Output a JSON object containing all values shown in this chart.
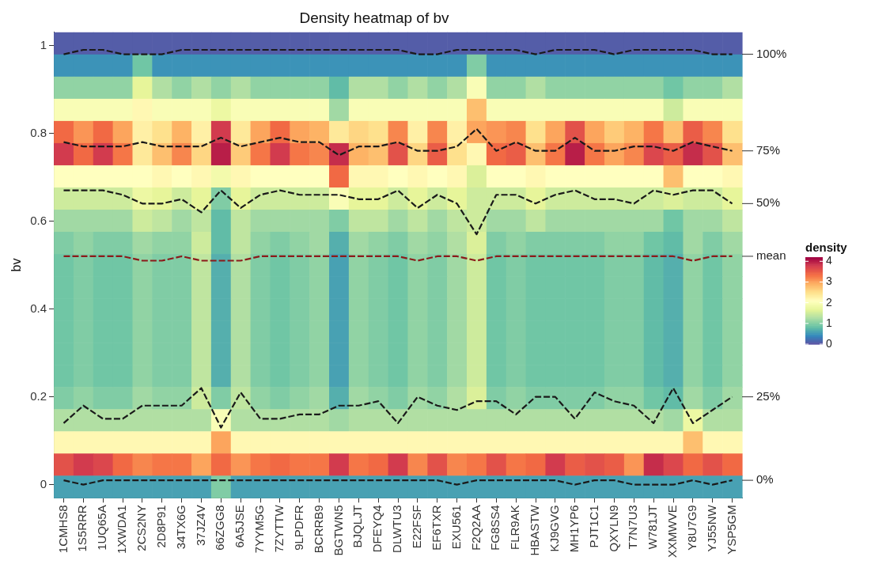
{
  "chart_data": {
    "type": "heatmap",
    "title": "Density heatmap of bv",
    "ylabel": "bv",
    "clabel": "density",
    "categories": [
      "1CMHS8",
      "1S5RRR",
      "1UQ65A",
      "1XWDA1",
      "2CS2NY",
      "2D8P91",
      "34TX6G",
      "37JZ4V",
      "66ZGG8",
      "6A5JSE",
      "7YYM5G",
      "7ZYTTW",
      "9LPDFR",
      "BCRRB9",
      "BGTWN5",
      "BJQLJT",
      "DFEYQ4",
      "DLWTU3",
      "E22FSF",
      "EF6TXR",
      "EXU561",
      "F2Q2AA",
      "FG8SS4",
      "FLR9AK",
      "HBASTW",
      "KJ9GVG",
      "MH1YP6",
      "PJT1C1",
      "QXYLN9",
      "T7N7U3",
      "W781JT",
      "XXMWVE",
      "Y8U7G9",
      "YJ55NW",
      "YSP5GM"
    ],
    "cells": [
      [
        0.1,
        0.1,
        0.1,
        0.1,
        0.1,
        0.1,
        0.1,
        0.1,
        0.1,
        0.1,
        0.1,
        0.1,
        0.1,
        0.1,
        0.1,
        0.1,
        0.1,
        0.1,
        0.1,
        0.1,
        0.1,
        0.1,
        0.1,
        0.1,
        0.1,
        0.1,
        0.1,
        0.1,
        0.1,
        0.1,
        0.1,
        0.1,
        0.1,
        0.1,
        0.1
      ],
      [
        0.5,
        0.5,
        0.5,
        0.5,
        0.9,
        0.5,
        0.5,
        0.5,
        0.5,
        0.5,
        0.5,
        0.5,
        0.5,
        0.5,
        0.5,
        0.5,
        0.5,
        0.5,
        0.5,
        0.5,
        0.5,
        1.0,
        0.5,
        0.5,
        0.5,
        0.5,
        0.5,
        0.5,
        0.5,
        0.5,
        0.5,
        0.5,
        0.5,
        0.5,
        0.5
      ],
      [
        1.1,
        1.1,
        1.1,
        1.1,
        1.7,
        1.3,
        1.1,
        1.3,
        1.1,
        1.3,
        1.1,
        1.1,
        1.1,
        1.1,
        0.8,
        1.3,
        1.3,
        1.1,
        1.3,
        1.1,
        1.3,
        2.0,
        1.1,
        1.1,
        1.3,
        1.1,
        1.1,
        1.1,
        1.1,
        1.1,
        1.1,
        0.9,
        1.1,
        1.1,
        1.3
      ],
      [
        2.0,
        2.0,
        2.0,
        2.0,
        2.2,
        2.0,
        2.0,
        2.0,
        1.8,
        2.0,
        2.0,
        2.0,
        2.0,
        2.0,
        1.2,
        2.0,
        2.0,
        2.0,
        2.0,
        2.0,
        2.0,
        2.8,
        2.0,
        2.0,
        2.0,
        2.0,
        2.0,
        2.0,
        2.0,
        2.0,
        2.0,
        1.5,
        2.0,
        2.0,
        2.0
      ],
      [
        3.4,
        3.1,
        3.4,
        3.0,
        2.3,
        2.5,
        2.9,
        2.3,
        3.8,
        2.4,
        3.0,
        3.4,
        3.0,
        2.9,
        2.4,
        2.6,
        2.5,
        3.2,
        2.3,
        3.2,
        2.3,
        3.0,
        3.1,
        3.2,
        2.5,
        3.0,
        3.6,
        3.0,
        2.7,
        2.9,
        3.3,
        2.8,
        3.5,
        3.2,
        2.5
      ],
      [
        3.8,
        3.4,
        3.8,
        3.3,
        2.4,
        2.8,
        3.2,
        2.6,
        4.0,
        2.7,
        3.3,
        3.8,
        3.3,
        3.2,
        3.9,
        2.9,
        2.8,
        3.6,
        2.6,
        3.5,
        2.5,
        2.2,
        3.4,
        3.5,
        2.8,
        3.3,
        4.0,
        3.3,
        3.0,
        3.2,
        3.7,
        3.5,
        3.9,
        3.6,
        2.8
      ],
      [
        2.1,
        2.1,
        2.1,
        2.1,
        2.1,
        2.2,
        2.1,
        2.2,
        1.9,
        2.2,
        2.1,
        2.1,
        2.1,
        2.1,
        3.4,
        2.2,
        2.2,
        2.1,
        2.2,
        2.1,
        2.2,
        1.6,
        2.1,
        2.1,
        2.2,
        2.1,
        2.1,
        2.1,
        2.1,
        2.1,
        2.1,
        2.8,
        2.1,
        2.1,
        2.2
      ],
      [
        1.5,
        1.5,
        1.5,
        1.5,
        1.8,
        1.7,
        1.5,
        1.7,
        1.0,
        1.7,
        1.5,
        1.5,
        1.5,
        1.5,
        2.0,
        1.7,
        1.7,
        1.5,
        1.7,
        1.5,
        1.7,
        1.5,
        1.5,
        1.5,
        1.7,
        1.5,
        1.5,
        1.5,
        1.5,
        1.5,
        1.5,
        1.6,
        1.5,
        1.5,
        1.7
      ],
      [
        1.2,
        1.2,
        1.2,
        1.2,
        1.5,
        1.4,
        1.2,
        1.4,
        0.8,
        1.4,
        1.2,
        1.2,
        1.2,
        1.2,
        1.0,
        1.4,
        1.4,
        1.2,
        1.4,
        1.2,
        1.4,
        1.5,
        1.2,
        1.2,
        1.4,
        1.2,
        1.2,
        1.2,
        1.2,
        1.2,
        1.2,
        0.9,
        1.2,
        1.2,
        1.4
      ],
      [
        1.0,
        1.1,
        1.0,
        1.0,
        1.2,
        1.1,
        1.1,
        1.5,
        0.8,
        1.4,
        1.1,
        1.0,
        1.1,
        1.2,
        0.7,
        1.2,
        1.1,
        1.0,
        1.2,
        1.1,
        1.3,
        1.6,
        1.0,
        1.1,
        1.0,
        1.0,
        1.0,
        1.0,
        1.1,
        1.1,
        0.9,
        0.8,
        1.2,
        1.0,
        1.2
      ],
      [
        0.9,
        1.0,
        0.9,
        0.9,
        1.1,
        1.0,
        1.0,
        1.4,
        0.7,
        1.3,
        1.0,
        0.9,
        1.0,
        1.1,
        0.6,
        1.1,
        1.0,
        0.9,
        1.1,
        1.0,
        1.2,
        1.5,
        0.9,
        1.0,
        0.9,
        0.9,
        0.9,
        0.9,
        1.0,
        1.0,
        0.8,
        0.7,
        1.1,
        0.9,
        1.1
      ],
      [
        0.9,
        1.0,
        0.9,
        0.9,
        1.1,
        1.0,
        1.0,
        1.4,
        0.7,
        1.3,
        1.0,
        0.9,
        1.0,
        1.1,
        0.6,
        1.1,
        1.0,
        0.9,
        1.1,
        1.0,
        1.2,
        1.5,
        0.9,
        1.0,
        0.9,
        0.9,
        0.9,
        0.9,
        1.0,
        1.0,
        0.8,
        0.7,
        1.1,
        0.9,
        1.1
      ],
      [
        0.9,
        1.0,
        0.9,
        0.9,
        1.1,
        1.0,
        1.0,
        1.4,
        0.7,
        1.3,
        1.0,
        0.9,
        1.0,
        1.1,
        0.6,
        1.1,
        1.0,
        0.9,
        1.1,
        1.0,
        1.2,
        1.5,
        0.9,
        1.0,
        0.9,
        0.9,
        0.9,
        0.9,
        1.0,
        1.0,
        0.8,
        0.7,
        1.1,
        0.9,
        1.1
      ],
      [
        0.9,
        1.0,
        0.9,
        0.9,
        1.1,
        1.0,
        1.0,
        1.4,
        0.7,
        1.3,
        1.0,
        0.9,
        1.0,
        1.1,
        0.6,
        1.1,
        1.0,
        0.9,
        1.1,
        1.0,
        1.2,
        1.5,
        0.9,
        1.0,
        0.9,
        0.9,
        0.9,
        0.9,
        1.0,
        1.0,
        0.8,
        0.7,
        1.1,
        0.9,
        1.1
      ],
      [
        0.9,
        1.0,
        0.9,
        0.9,
        1.1,
        1.0,
        1.0,
        1.4,
        0.7,
        1.3,
        1.0,
        0.9,
        1.0,
        1.1,
        0.6,
        1.1,
        1.0,
        0.9,
        1.1,
        1.0,
        1.2,
        1.5,
        0.9,
        1.0,
        0.9,
        0.9,
        0.9,
        0.9,
        1.0,
        1.0,
        0.8,
        0.7,
        1.1,
        0.9,
        1.1
      ],
      [
        0.9,
        1.0,
        0.9,
        0.9,
        1.1,
        1.0,
        1.0,
        1.4,
        0.7,
        1.3,
        1.0,
        0.9,
        1.0,
        1.1,
        0.6,
        1.1,
        1.0,
        0.9,
        1.1,
        1.0,
        1.2,
        1.5,
        0.9,
        1.0,
        0.9,
        0.9,
        0.9,
        0.9,
        1.0,
        1.0,
        0.8,
        0.7,
        1.1,
        0.9,
        1.1
      ],
      [
        1.0,
        1.1,
        1.0,
        1.0,
        1.2,
        1.1,
        1.1,
        1.5,
        1.0,
        1.4,
        1.1,
        1.0,
        1.1,
        1.2,
        0.7,
        1.2,
        1.1,
        1.0,
        1.2,
        1.1,
        1.3,
        1.6,
        1.0,
        1.1,
        1.0,
        1.0,
        1.0,
        1.0,
        1.1,
        1.1,
        0.9,
        0.8,
        1.2,
        1.0,
        1.2
      ],
      [
        1.3,
        1.3,
        1.3,
        1.3,
        1.3,
        1.3,
        1.3,
        1.3,
        2.0,
        1.3,
        1.3,
        1.3,
        1.3,
        1.3,
        1.2,
        1.3,
        1.3,
        1.3,
        1.3,
        1.3,
        1.3,
        1.3,
        1.3,
        1.3,
        1.3,
        1.3,
        1.3,
        1.3,
        1.3,
        1.3,
        1.3,
        1.2,
        1.8,
        1.3,
        1.3
      ],
      [
        2.2,
        2.2,
        2.2,
        2.2,
        2.2,
        2.2,
        2.2,
        2.2,
        3.0,
        2.2,
        2.2,
        2.2,
        2.2,
        2.2,
        2.2,
        2.2,
        2.2,
        2.2,
        2.2,
        2.2,
        2.2,
        2.2,
        2.2,
        2.2,
        2.2,
        2.2,
        2.2,
        2.2,
        2.2,
        2.2,
        2.2,
        2.2,
        2.8,
        2.2,
        2.2
      ],
      [
        3.6,
        3.8,
        3.7,
        3.4,
        3.2,
        3.3,
        3.3,
        3.0,
        3.4,
        3.1,
        3.3,
        3.4,
        3.3,
        3.3,
        3.8,
        3.3,
        3.4,
        3.8,
        3.2,
        3.6,
        3.2,
        3.3,
        3.6,
        3.3,
        3.4,
        3.8,
        3.5,
        3.6,
        3.5,
        3.1,
        3.9,
        3.7,
        3.4,
        3.6,
        3.4
      ],
      [
        0.6,
        0.6,
        0.6,
        0.6,
        0.6,
        0.6,
        0.6,
        0.6,
        1.0,
        0.6,
        0.6,
        0.6,
        0.6,
        0.6,
        0.6,
        0.6,
        0.6,
        0.6,
        0.6,
        0.6,
        0.6,
        0.6,
        0.6,
        0.6,
        0.6,
        0.6,
        0.6,
        0.6,
        0.6,
        0.6,
        0.6,
        0.6,
        0.6,
        0.6,
        0.6
      ]
    ],
    "clim": [
      0,
      4.2
    ],
    "cticks": [
      0,
      1,
      2,
      3,
      4
    ],
    "ylim": [
      -0.03,
      1.03
    ],
    "yticks": [
      0,
      0.2,
      0.4,
      0.6,
      0.8,
      1
    ],
    "line_style": "dashed",
    "series": [
      {
        "type": "line",
        "name": "100%",
        "color": "#1a1a1a",
        "values": [
          0.98,
          0.99,
          0.99,
          0.98,
          0.98,
          0.98,
          0.99,
          0.99,
          0.99,
          0.99,
          0.99,
          0.99,
          0.99,
          0.99,
          0.99,
          0.99,
          0.99,
          0.99,
          0.98,
          0.98,
          0.99,
          0.99,
          0.99,
          0.99,
          0.98,
          0.99,
          0.99,
          0.99,
          0.98,
          0.99,
          0.99,
          0.99,
          0.99,
          0.98,
          0.98
        ]
      },
      {
        "type": "line",
        "name": "75%",
        "color": "#1a1a1a",
        "values": [
          0.78,
          0.77,
          0.77,
          0.77,
          0.78,
          0.77,
          0.77,
          0.77,
          0.79,
          0.77,
          0.78,
          0.79,
          0.78,
          0.78,
          0.75,
          0.77,
          0.77,
          0.78,
          0.76,
          0.76,
          0.77,
          0.81,
          0.76,
          0.78,
          0.76,
          0.76,
          0.79,
          0.76,
          0.76,
          0.77,
          0.77,
          0.76,
          0.78,
          0.77,
          0.76
        ]
      },
      {
        "type": "line",
        "name": "50%",
        "color": "#1a1a1a",
        "values": [
          0.67,
          0.67,
          0.67,
          0.66,
          0.64,
          0.64,
          0.65,
          0.62,
          0.67,
          0.63,
          0.66,
          0.67,
          0.66,
          0.66,
          0.66,
          0.65,
          0.65,
          0.67,
          0.63,
          0.66,
          0.64,
          0.57,
          0.66,
          0.66,
          0.64,
          0.66,
          0.67,
          0.65,
          0.65,
          0.64,
          0.67,
          0.66,
          0.67,
          0.67,
          0.64
        ]
      },
      {
        "type": "line",
        "name": "mean",
        "color": "#8b1a1a",
        "values": [
          0.52,
          0.52,
          0.52,
          0.52,
          0.51,
          0.51,
          0.52,
          0.51,
          0.51,
          0.51,
          0.52,
          0.52,
          0.52,
          0.52,
          0.52,
          0.52,
          0.52,
          0.52,
          0.51,
          0.52,
          0.52,
          0.51,
          0.52,
          0.52,
          0.52,
          0.52,
          0.52,
          0.52,
          0.52,
          0.52,
          0.52,
          0.52,
          0.51,
          0.52,
          0.52
        ]
      },
      {
        "type": "line",
        "name": "25%",
        "color": "#1a1a1a",
        "values": [
          0.14,
          0.18,
          0.15,
          0.15,
          0.18,
          0.18,
          0.18,
          0.22,
          0.13,
          0.21,
          0.15,
          0.15,
          0.16,
          0.16,
          0.18,
          0.18,
          0.19,
          0.14,
          0.2,
          0.18,
          0.17,
          0.19,
          0.19,
          0.16,
          0.2,
          0.2,
          0.15,
          0.21,
          0.19,
          0.18,
          0.14,
          0.22,
          0.14,
          0.17,
          0.2
        ]
      },
      {
        "type": "line",
        "name": "0%",
        "color": "#1a1a1a",
        "values": [
          0.01,
          0.0,
          0.01,
          0.01,
          0.01,
          0.01,
          0.01,
          0.01,
          0.01,
          0.01,
          0.01,
          0.01,
          0.01,
          0.01,
          0.01,
          0.01,
          0.01,
          0.01,
          0.01,
          0.01,
          0.0,
          0.01,
          0.01,
          0.01,
          0.01,
          0.01,
          0.0,
          0.01,
          0.01,
          0.0,
          0.0,
          0.0,
          0.01,
          0.0,
          0.01
        ]
      }
    ]
  }
}
